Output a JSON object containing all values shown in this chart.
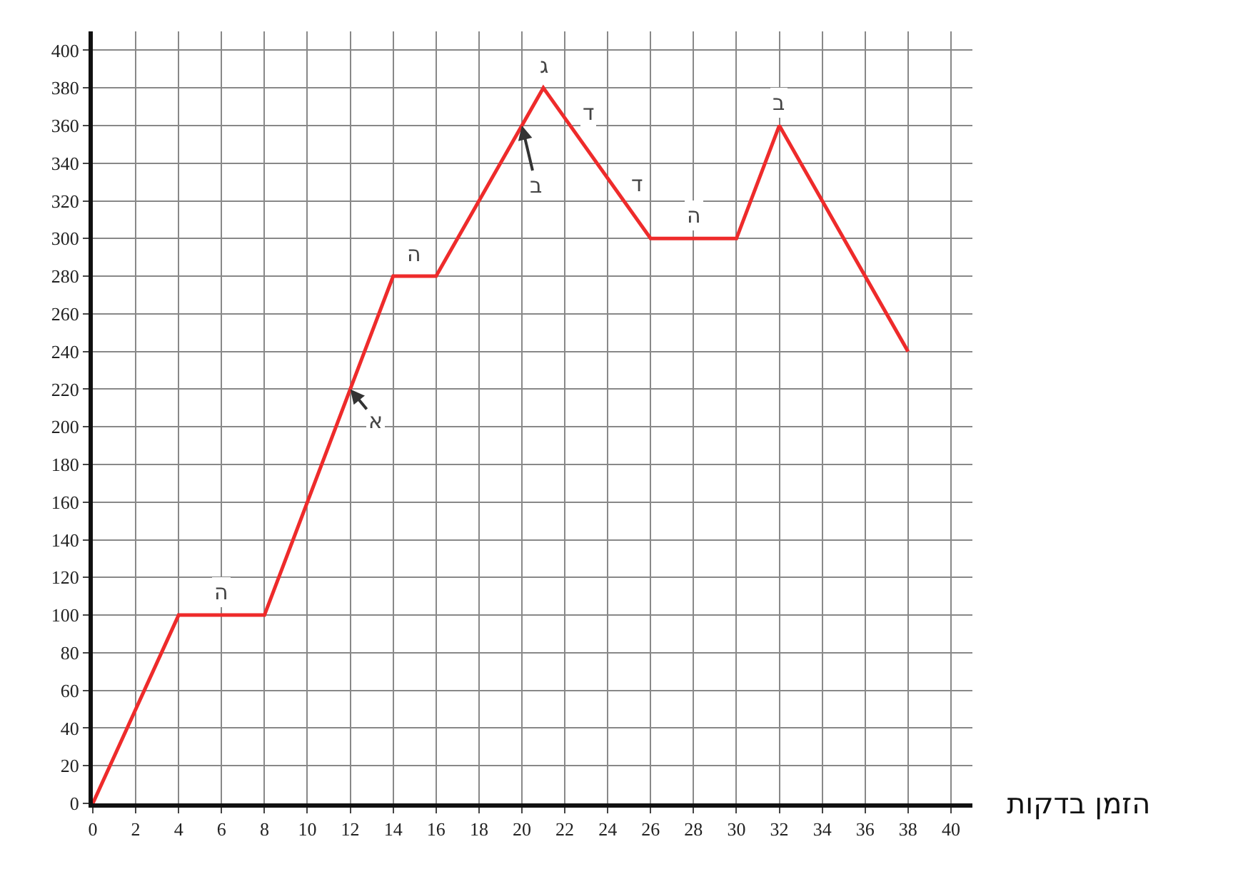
{
  "chart_data": {
    "type": "line",
    "xlabel": "הזמן בדקות",
    "x": [
      0,
      4,
      8,
      14,
      16,
      21,
      26,
      30,
      32,
      38
    ],
    "series": [
      {
        "color": "#ee2b2b",
        "values": [
          0,
          100,
          100,
          280,
          280,
          380,
          300,
          300,
          360,
          240
        ]
      }
    ],
    "xlim": [
      0,
      41
    ],
    "ylim": [
      0,
      410
    ],
    "xticks": [
      0,
      2,
      4,
      6,
      8,
      10,
      12,
      14,
      16,
      18,
      20,
      22,
      24,
      26,
      28,
      30,
      32,
      34,
      36,
      38,
      40
    ],
    "yticks": [
      0,
      20,
      40,
      60,
      80,
      100,
      120,
      140,
      160,
      180,
      200,
      220,
      240,
      260,
      280,
      300,
      320,
      340,
      360,
      380,
      400
    ],
    "grid": true,
    "marker": "none",
    "line_style": "solid",
    "annotations": [
      {
        "text": "ה",
        "x": 6,
        "y": 100
      },
      {
        "text": "א",
        "x": 12,
        "y": 220
      },
      {
        "text": "ה",
        "x": 15,
        "y": 280
      },
      {
        "text": "ג",
        "x": 21,
        "y": 380
      },
      {
        "text": "ב",
        "x": 20,
        "y": 360
      },
      {
        "text": "ד",
        "x": 22,
        "y": 364
      },
      {
        "text": "ד",
        "x": 24,
        "y": 332
      },
      {
        "text": "ה",
        "x": 28,
        "y": 300
      },
      {
        "text": "ב",
        "x": 32,
        "y": 360
      }
    ]
  }
}
